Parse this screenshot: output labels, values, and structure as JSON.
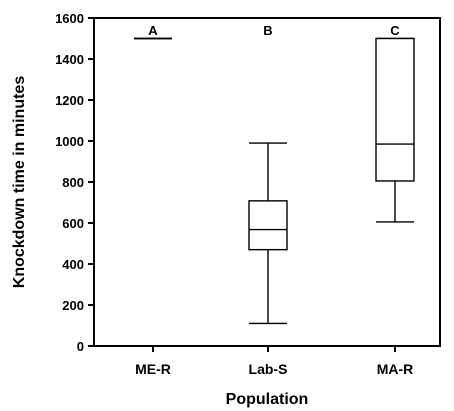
{
  "chart_data": {
    "type": "box",
    "title": "",
    "xlabel": "Population",
    "ylabel": "Knockdown time in minutes",
    "ylim": [
      0,
      1600
    ],
    "yticks": [
      0,
      200,
      400,
      600,
      800,
      1000,
      1200,
      1400,
      1600
    ],
    "grid": false,
    "categories": [
      "ME-R",
      "Lab-S",
      "MA-R"
    ],
    "boxes": [
      {
        "category": "ME-R",
        "letter": "A",
        "min": 1500,
        "q1": 1500,
        "median": 1500,
        "q3": 1500,
        "max": 1500
      },
      {
        "category": "Lab-S",
        "letter": "B",
        "min": 110,
        "q1": 470,
        "median": 568,
        "q3": 708,
        "max": 990
      },
      {
        "category": "MA-R",
        "letter": "C",
        "min": 605,
        "q1": 805,
        "median": 985,
        "q3": 1500,
        "max": 1500
      }
    ]
  }
}
